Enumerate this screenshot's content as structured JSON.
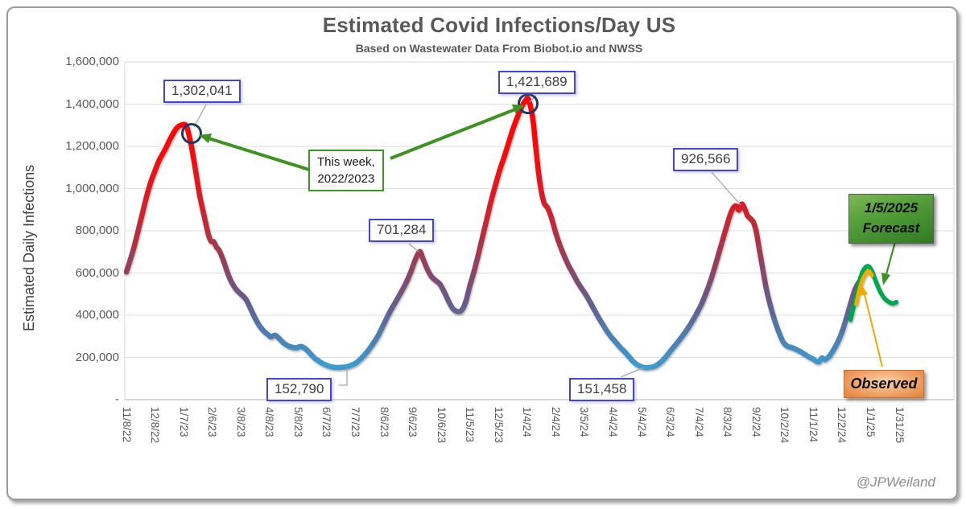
{
  "watermark": "@JPWeiland",
  "chart_data": {
    "type": "line",
    "title": "Estimated Covid Infections/Day US",
    "subtitle": "Based on Wastewater Data From Biobot.io and NWSS",
    "ylabel": "Estimated Daily Infections",
    "ylim": [
      0,
      1600000
    ],
    "ytick_step": 200000,
    "grid": true,
    "ytick_labels": [
      "-",
      "200,000",
      "400,000",
      "600,000",
      "800,000",
      "1,000,000",
      "1,200,000",
      "1,400,000",
      "1,600,000"
    ],
    "x_labels": [
      "11/8/22",
      "12/8/22",
      "1/7/23",
      "2/6/23",
      "3/8/23",
      "4/8/23",
      "5/8/23",
      "6/7/23",
      "7/7/23",
      "8/6/23",
      "9/6/23",
      "10/6/23",
      "11/5/23",
      "12/5/23",
      "1/4/24",
      "2/4/24",
      "3/5/24",
      "4/4/24",
      "5/4/24",
      "6/3/24",
      "7/4/24",
      "8/3/24",
      "9/2/24",
      "10/2/24",
      "11/1/24",
      "12/2/24",
      "1/1/25",
      "1/31/25"
    ],
    "value_gradient_stops": [
      [
        150000,
        "#3F9CCF"
      ],
      [
        250000,
        "#4689BC"
      ],
      [
        350000,
        "#5474A6"
      ],
      [
        430000,
        "#606390"
      ],
      [
        500000,
        "#6F5682"
      ],
      [
        560000,
        "#7E4C73"
      ],
      [
        620000,
        "#8D4464"
      ],
      [
        680000,
        "#9C3C55"
      ],
      [
        740000,
        "#AB3448"
      ],
      [
        800000,
        "#BA2C3C"
      ],
      [
        870000,
        "#CA2430"
      ],
      [
        950000,
        "#D91C25"
      ],
      [
        1040000,
        "#E7141A"
      ],
      [
        1140000,
        "#F40C0E"
      ],
      [
        1260000,
        "#FD0505"
      ],
      [
        1500000,
        "#FF0303"
      ]
    ],
    "series": [
      {
        "name": "estimated-daily-infections",
        "style": "value-gradient",
        "width": 6.5,
        "points": [
          [
            0,
            605000
          ],
          [
            0.25,
            715000
          ],
          [
            0.5,
            850000
          ],
          [
            0.7,
            960000
          ],
          [
            0.85,
            1030000
          ],
          [
            1,
            1085000
          ],
          [
            1.15,
            1135000
          ],
          [
            1.35,
            1185000
          ],
          [
            1.55,
            1240000
          ],
          [
            1.75,
            1285000
          ],
          [
            1.95,
            1302041
          ],
          [
            2.1,
            1295000
          ],
          [
            2.25,
            1215000
          ],
          [
            2.4,
            1100000
          ],
          [
            2.55,
            975000
          ],
          [
            2.7,
            880000
          ],
          [
            2.85,
            790000
          ],
          [
            2.95,
            752000
          ],
          [
            3.05,
            748000
          ],
          [
            3.15,
            722000
          ],
          [
            3.25,
            705000
          ],
          [
            3.4,
            655000
          ],
          [
            3.55,
            595000
          ],
          [
            3.7,
            550000
          ],
          [
            3.85,
            520000
          ],
          [
            4,
            500000
          ],
          [
            4.1,
            488000
          ],
          [
            4.2,
            470000
          ],
          [
            4.35,
            428000
          ],
          [
            4.5,
            385000
          ],
          [
            4.65,
            350000
          ],
          [
            4.8,
            325000
          ],
          [
            4.95,
            308000
          ],
          [
            5.05,
            298000
          ],
          [
            5.2,
            305000
          ],
          [
            5.35,
            288000
          ],
          [
            5.5,
            268000
          ],
          [
            5.65,
            255000
          ],
          [
            5.8,
            248000
          ],
          [
            5.95,
            246000
          ],
          [
            6.1,
            252000
          ],
          [
            6.25,
            242000
          ],
          [
            6.4,
            222000
          ],
          [
            6.55,
            200000
          ],
          [
            6.7,
            185000
          ],
          [
            6.85,
            172000
          ],
          [
            7,
            163000
          ],
          [
            7.15,
            156000
          ],
          [
            7.3,
            153000
          ],
          [
            7.5,
            152790
          ],
          [
            7.7,
            156000
          ],
          [
            7.85,
            163000
          ],
          [
            8,
            172000
          ],
          [
            8.2,
            195000
          ],
          [
            8.4,
            225000
          ],
          [
            8.6,
            262000
          ],
          [
            8.8,
            305000
          ],
          [
            9,
            360000
          ],
          [
            9.2,
            415000
          ],
          [
            9.4,
            462000
          ],
          [
            9.6,
            510000
          ],
          [
            9.8,
            562000
          ],
          [
            9.95,
            610000
          ],
          [
            10.1,
            665000
          ],
          [
            10.25,
            701284
          ],
          [
            10.35,
            672000
          ],
          [
            10.5,
            622000
          ],
          [
            10.65,
            585000
          ],
          [
            10.8,
            565000
          ],
          [
            10.95,
            548000
          ],
          [
            11.1,
            512000
          ],
          [
            11.25,
            468000
          ],
          [
            11.4,
            432000
          ],
          [
            11.55,
            418000
          ],
          [
            11.7,
            422000
          ],
          [
            11.85,
            462000
          ],
          [
            12,
            540000
          ],
          [
            12.15,
            610000
          ],
          [
            12.3,
            690000
          ],
          [
            12.45,
            775000
          ],
          [
            12.6,
            860000
          ],
          [
            12.75,
            945000
          ],
          [
            12.9,
            1020000
          ],
          [
            13.05,
            1090000
          ],
          [
            13.2,
            1150000
          ],
          [
            13.35,
            1215000
          ],
          [
            13.5,
            1280000
          ],
          [
            13.65,
            1335000
          ],
          [
            13.8,
            1385000
          ],
          [
            13.95,
            1418000
          ],
          [
            14.05,
            1421689
          ],
          [
            14.2,
            1330000
          ],
          [
            14.3,
            1200000
          ],
          [
            14.4,
            1075000
          ],
          [
            14.5,
            985000
          ],
          [
            14.6,
            930000
          ],
          [
            14.72,
            908000
          ],
          [
            14.85,
            862000
          ],
          [
            15,
            790000
          ],
          [
            15.15,
            730000
          ],
          [
            15.3,
            680000
          ],
          [
            15.45,
            635000
          ],
          [
            15.6,
            598000
          ],
          [
            15.75,
            560000
          ],
          [
            15.9,
            528000
          ],
          [
            16.05,
            498000
          ],
          [
            16.2,
            462000
          ],
          [
            16.35,
            425000
          ],
          [
            16.5,
            388000
          ],
          [
            16.65,
            355000
          ],
          [
            16.8,
            322000
          ],
          [
            16.95,
            295000
          ],
          [
            17.1,
            272000
          ],
          [
            17.25,
            248000
          ],
          [
            17.4,
            228000
          ],
          [
            17.55,
            205000
          ],
          [
            17.7,
            182000
          ],
          [
            17.85,
            165000
          ],
          [
            18,
            156000
          ],
          [
            18.15,
            151458
          ],
          [
            18.3,
            153000
          ],
          [
            18.45,
            158000
          ],
          [
            18.6,
            170000
          ],
          [
            18.75,
            188000
          ],
          [
            18.9,
            212000
          ],
          [
            19.05,
            238000
          ],
          [
            19.2,
            262000
          ],
          [
            19.35,
            288000
          ],
          [
            19.5,
            315000
          ],
          [
            19.65,
            345000
          ],
          [
            19.8,
            378000
          ],
          [
            19.95,
            415000
          ],
          [
            20.1,
            455000
          ],
          [
            20.25,
            505000
          ],
          [
            20.4,
            560000
          ],
          [
            20.55,
            625000
          ],
          [
            20.7,
            695000
          ],
          [
            20.85,
            765000
          ],
          [
            21,
            835000
          ],
          [
            21.1,
            878000
          ],
          [
            21.2,
            908000
          ],
          [
            21.3,
            918000
          ],
          [
            21.4,
            898000
          ],
          [
            21.5,
            926566
          ],
          [
            21.6,
            905000
          ],
          [
            21.7,
            872000
          ],
          [
            21.8,
            858000
          ],
          [
            21.9,
            842000
          ],
          [
            22,
            800000
          ],
          [
            22.1,
            722000
          ],
          [
            22.2,
            645000
          ],
          [
            22.35,
            530000
          ],
          [
            22.5,
            445000
          ],
          [
            22.65,
            375000
          ],
          [
            22.8,
            318000
          ],
          [
            22.95,
            272000
          ],
          [
            23.1,
            253000
          ],
          [
            23.25,
            247000
          ],
          [
            23.4,
            238000
          ],
          [
            23.55,
            228000
          ],
          [
            23.7,
            215000
          ],
          [
            23.85,
            202000
          ],
          [
            24,
            192000
          ],
          [
            24.1,
            182000
          ],
          [
            24.2,
            180000
          ],
          [
            24.3,
            198000
          ],
          [
            24.4,
            190000
          ],
          [
            24.55,
            205000
          ],
          [
            24.7,
            235000
          ],
          [
            24.85,
            272000
          ],
          [
            25,
            320000
          ],
          [
            25.15,
            385000
          ],
          [
            25.3,
            455000
          ],
          [
            25.45,
            520000
          ],
          [
            25.6,
            558000
          ],
          [
            25.7,
            578000
          ]
        ]
      },
      {
        "name": "forecast",
        "color": "#00A550",
        "width": 5.5,
        "points": [
          [
            25.3,
            378000
          ],
          [
            25.45,
            465000
          ],
          [
            25.6,
            555000
          ],
          [
            25.72,
            605000
          ],
          [
            25.85,
            630000
          ],
          [
            25.95,
            630000
          ],
          [
            26.05,
            608000
          ],
          [
            26.2,
            555000
          ],
          [
            26.35,
            508000
          ],
          [
            26.5,
            478000
          ],
          [
            26.65,
            462000
          ],
          [
            26.78,
            456000
          ],
          [
            26.9,
            462000
          ]
        ]
      },
      {
        "name": "observed",
        "color": "#EFAF00",
        "width": 5,
        "points": [
          [
            25.5,
            452000
          ],
          [
            25.6,
            515000
          ],
          [
            25.72,
            568000
          ],
          [
            25.85,
            600000
          ],
          [
            25.95,
            608000
          ],
          [
            26.05,
            588000
          ]
        ]
      }
    ],
    "annotations": {
      "peak1": "1,302,041",
      "peak2": "1,421,689",
      "peak3": "926,566",
      "peak4": "701,284",
      "trough1": "152,790",
      "trough2": "151,458",
      "thisweek_line1": "This week,",
      "thisweek_line2": "2022/2023",
      "forecast_line1": "1/5/2025",
      "forecast_line2": "Forecast",
      "observed_label": "Observed",
      "accent_green": "#3E9222",
      "accent_blue": "#4343DD",
      "accent_orange": "#EFA800",
      "circle_color": "#1F3864"
    }
  }
}
